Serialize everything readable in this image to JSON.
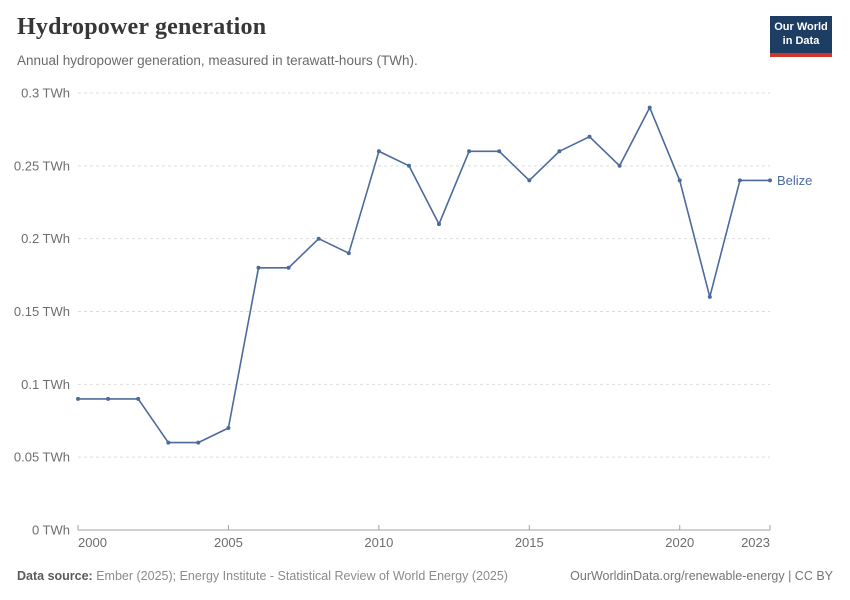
{
  "header": {
    "title": "Hydropower generation",
    "subtitle": "Annual hydropower generation, measured in terawatt-hours (TWh).",
    "logo": {
      "line1": "Our World",
      "line2": "in Data"
    }
  },
  "chart_data": {
    "type": "line",
    "title": "Hydropower generation",
    "subtitle": "Annual hydropower generation, measured in terawatt-hours (TWh).",
    "unit": "TWh",
    "xlim": [
      2000,
      2023
    ],
    "ylim": [
      0,
      0.3
    ],
    "grid": "horizontal-dashed",
    "legend_position": "line-end-label",
    "x_ticks": [
      {
        "value": 2000,
        "label": "2000"
      },
      {
        "value": 2005,
        "label": "2005"
      },
      {
        "value": 2010,
        "label": "2010"
      },
      {
        "value": 2015,
        "label": "2015"
      },
      {
        "value": 2020,
        "label": "2020"
      },
      {
        "value": 2023,
        "label": "2023"
      }
    ],
    "y_ticks": [
      {
        "value": 0,
        "label": "0 TWh"
      },
      {
        "value": 0.05,
        "label": "0.05 TWh"
      },
      {
        "value": 0.1,
        "label": "0.1 TWh"
      },
      {
        "value": 0.15,
        "label": "0.15 TWh"
      },
      {
        "value": 0.2,
        "label": "0.2 TWh"
      },
      {
        "value": 0.25,
        "label": "0.25 TWh"
      },
      {
        "value": 0.3,
        "label": "0.3 TWh"
      }
    ],
    "series": [
      {
        "name": "Belize",
        "color": "#4C6A9C",
        "x": [
          2000,
          2001,
          2002,
          2003,
          2004,
          2005,
          2006,
          2007,
          2008,
          2009,
          2010,
          2011,
          2012,
          2013,
          2014,
          2015,
          2016,
          2017,
          2018,
          2019,
          2020,
          2021,
          2022,
          2023
        ],
        "values": [
          0.09,
          0.09,
          0.09,
          0.06,
          0.06,
          0.07,
          0.18,
          0.18,
          0.2,
          0.19,
          0.26,
          0.25,
          0.21,
          0.26,
          0.26,
          0.24,
          0.26,
          0.27,
          0.25,
          0.29,
          0.24,
          0.16,
          0.24,
          0.24
        ]
      }
    ]
  },
  "footer": {
    "source_label": "Data source:",
    "source_text": " Ember (2025); Energy Institute - Statistical Review of World Energy (2025)",
    "link_text": "OurWorldinData.org/renewable-energy | CC BY"
  },
  "colors": {
    "series_blue": "#4C6A9C",
    "logo_navy": "#1d3d63",
    "logo_red": "#d1362c",
    "grid": "#dddddd",
    "axis": "#a3a3a3",
    "tick_label": "#6e6e6e",
    "title_text": "#383636",
    "subtitle_text": "#6b6b6b"
  }
}
